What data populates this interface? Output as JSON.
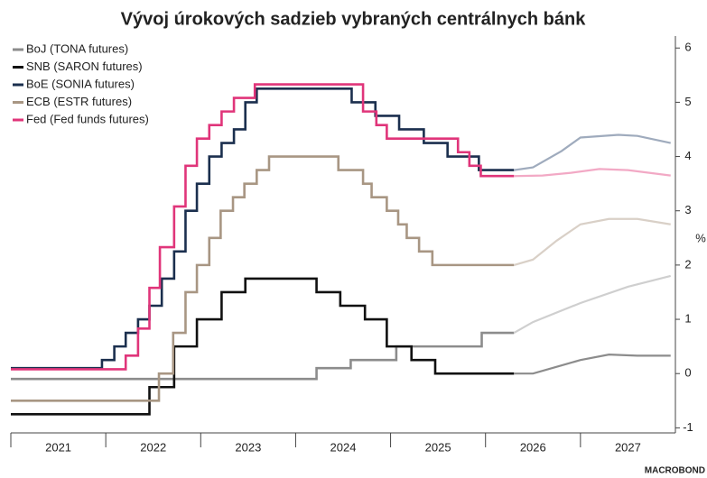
{
  "chart_data": {
    "type": "step",
    "title": "Vývoj úrokových sadzieb vybraných centrálnych bánk",
    "y_label": "%",
    "source": "MACROBOND",
    "xlim": [
      2021,
      2028
    ],
    "xticks": [
      {
        "value": 2021.5,
        "label": "2021"
      },
      {
        "value": 2022.5,
        "label": "2022"
      },
      {
        "value": 2023.5,
        "label": "2023"
      },
      {
        "value": 2024.5,
        "label": "2024"
      },
      {
        "value": 2025.5,
        "label": "2025"
      },
      {
        "value": 2026.5,
        "label": "2026"
      },
      {
        "value": 2027.5,
        "label": "2027"
      }
    ],
    "ylim": [
      -1.16,
      6.22
    ],
    "yticks": [
      -1,
      0,
      1,
      2,
      3,
      4,
      5,
      6
    ],
    "series": [
      {
        "name": "BoJ (TONA futures)",
        "color": "#8c8c8c",
        "forecast_color": "#cfcfcf",
        "x": [
          2021,
          2024.22,
          2024.58,
          2025.06,
          2025.96,
          2026.3
        ],
        "values": [
          -0.1,
          0.1,
          0.25,
          0.5,
          0.75,
          0.75
        ],
        "forecast_x": [
          2026.3,
          2026.5,
          2027.0,
          2027.5,
          2027.95
        ],
        "forecast_values": [
          0.75,
          0.95,
          1.3,
          1.6,
          1.8
        ]
      },
      {
        "name": "SNB (SARON futures)",
        "color": "#111111",
        "forecast_color": "#8c8c8c",
        "x": [
          2021,
          2022.46,
          2022.72,
          2022.96,
          2023.22,
          2023.47,
          2024.22,
          2024.47,
          2024.73,
          2024.96,
          2025.22,
          2025.47,
          2026.3
        ],
        "values": [
          -0.75,
          -0.25,
          0.5,
          1.0,
          1.5,
          1.75,
          1.5,
          1.25,
          1.0,
          0.5,
          0.25,
          0,
          0
        ],
        "forecast_x": [
          2026.3,
          2026.5,
          2026.8,
          2027.0,
          2027.3,
          2027.6,
          2027.95
        ],
        "forecast_values": [
          0,
          0,
          0.15,
          0.25,
          0.35,
          0.33,
          0.33
        ]
      },
      {
        "name": "BoE (SONIA futures)",
        "color": "#1b2f4e",
        "forecast_color": "#9fabbd",
        "x": [
          2021,
          2021.96,
          2022.09,
          2022.21,
          2022.34,
          2022.46,
          2022.59,
          2022.72,
          2022.84,
          2022.96,
          2023.09,
          2023.22,
          2023.35,
          2023.47,
          2023.59,
          2024.59,
          2024.84,
          2025.09,
          2025.35,
          2025.6,
          2025.93,
          2026.3
        ],
        "values": [
          0.1,
          0.25,
          0.5,
          0.75,
          1.0,
          1.25,
          1.75,
          2.25,
          3.0,
          3.5,
          4.0,
          4.25,
          4.5,
          5.0,
          5.25,
          5.0,
          4.75,
          4.5,
          4.25,
          4.0,
          3.75,
          3.75
        ],
        "forecast_x": [
          2026.3,
          2026.5,
          2026.8,
          2027.0,
          2027.4,
          2027.6,
          2027.95
        ],
        "forecast_values": [
          3.75,
          3.8,
          4.1,
          4.35,
          4.4,
          4.38,
          4.25
        ]
      },
      {
        "name": "ECB (ESTR futures)",
        "color": "#a89683",
        "forecast_color": "#d9d0c7",
        "x": [
          2021,
          2022.56,
          2022.71,
          2022.84,
          2022.96,
          2023.09,
          2023.21,
          2023.34,
          2023.46,
          2023.59,
          2023.72,
          2024.45,
          2024.71,
          2024.8,
          2024.96,
          2025.08,
          2025.17,
          2025.3,
          2025.44,
          2026.3
        ],
        "values": [
          -0.5,
          0,
          0.75,
          1.5,
          2.0,
          2.5,
          3.0,
          3.25,
          3.5,
          3.75,
          4.0,
          3.75,
          3.5,
          3.25,
          3.0,
          2.75,
          2.5,
          2.25,
          2.0,
          2.0
        ],
        "forecast_x": [
          2026.3,
          2026.5,
          2026.75,
          2027.0,
          2027.3,
          2027.6,
          2027.95
        ],
        "forecast_values": [
          2.0,
          2.1,
          2.45,
          2.75,
          2.85,
          2.85,
          2.75
        ]
      },
      {
        "name": "Fed (Fed funds futures)",
        "color": "#e0357a",
        "forecast_color": "#f2a9c5",
        "x": [
          2021,
          2022.21,
          2022.34,
          2022.46,
          2022.57,
          2022.72,
          2022.84,
          2022.96,
          2023.09,
          2023.22,
          2023.35,
          2023.57,
          2024.71,
          2024.85,
          2024.96,
          2025.71,
          2025.83,
          2025.95,
          2026.3
        ],
        "values": [
          0.08,
          0.33,
          0.83,
          1.58,
          2.33,
          3.08,
          3.83,
          4.33,
          4.58,
          4.83,
          5.08,
          5.33,
          4.83,
          4.58,
          4.33,
          4.08,
          3.83,
          3.64,
          3.64
        ],
        "forecast_x": [
          2026.3,
          2026.6,
          2026.9,
          2027.2,
          2027.5,
          2027.95
        ],
        "forecast_values": [
          3.64,
          3.65,
          3.7,
          3.77,
          3.75,
          3.65
        ]
      }
    ]
  }
}
